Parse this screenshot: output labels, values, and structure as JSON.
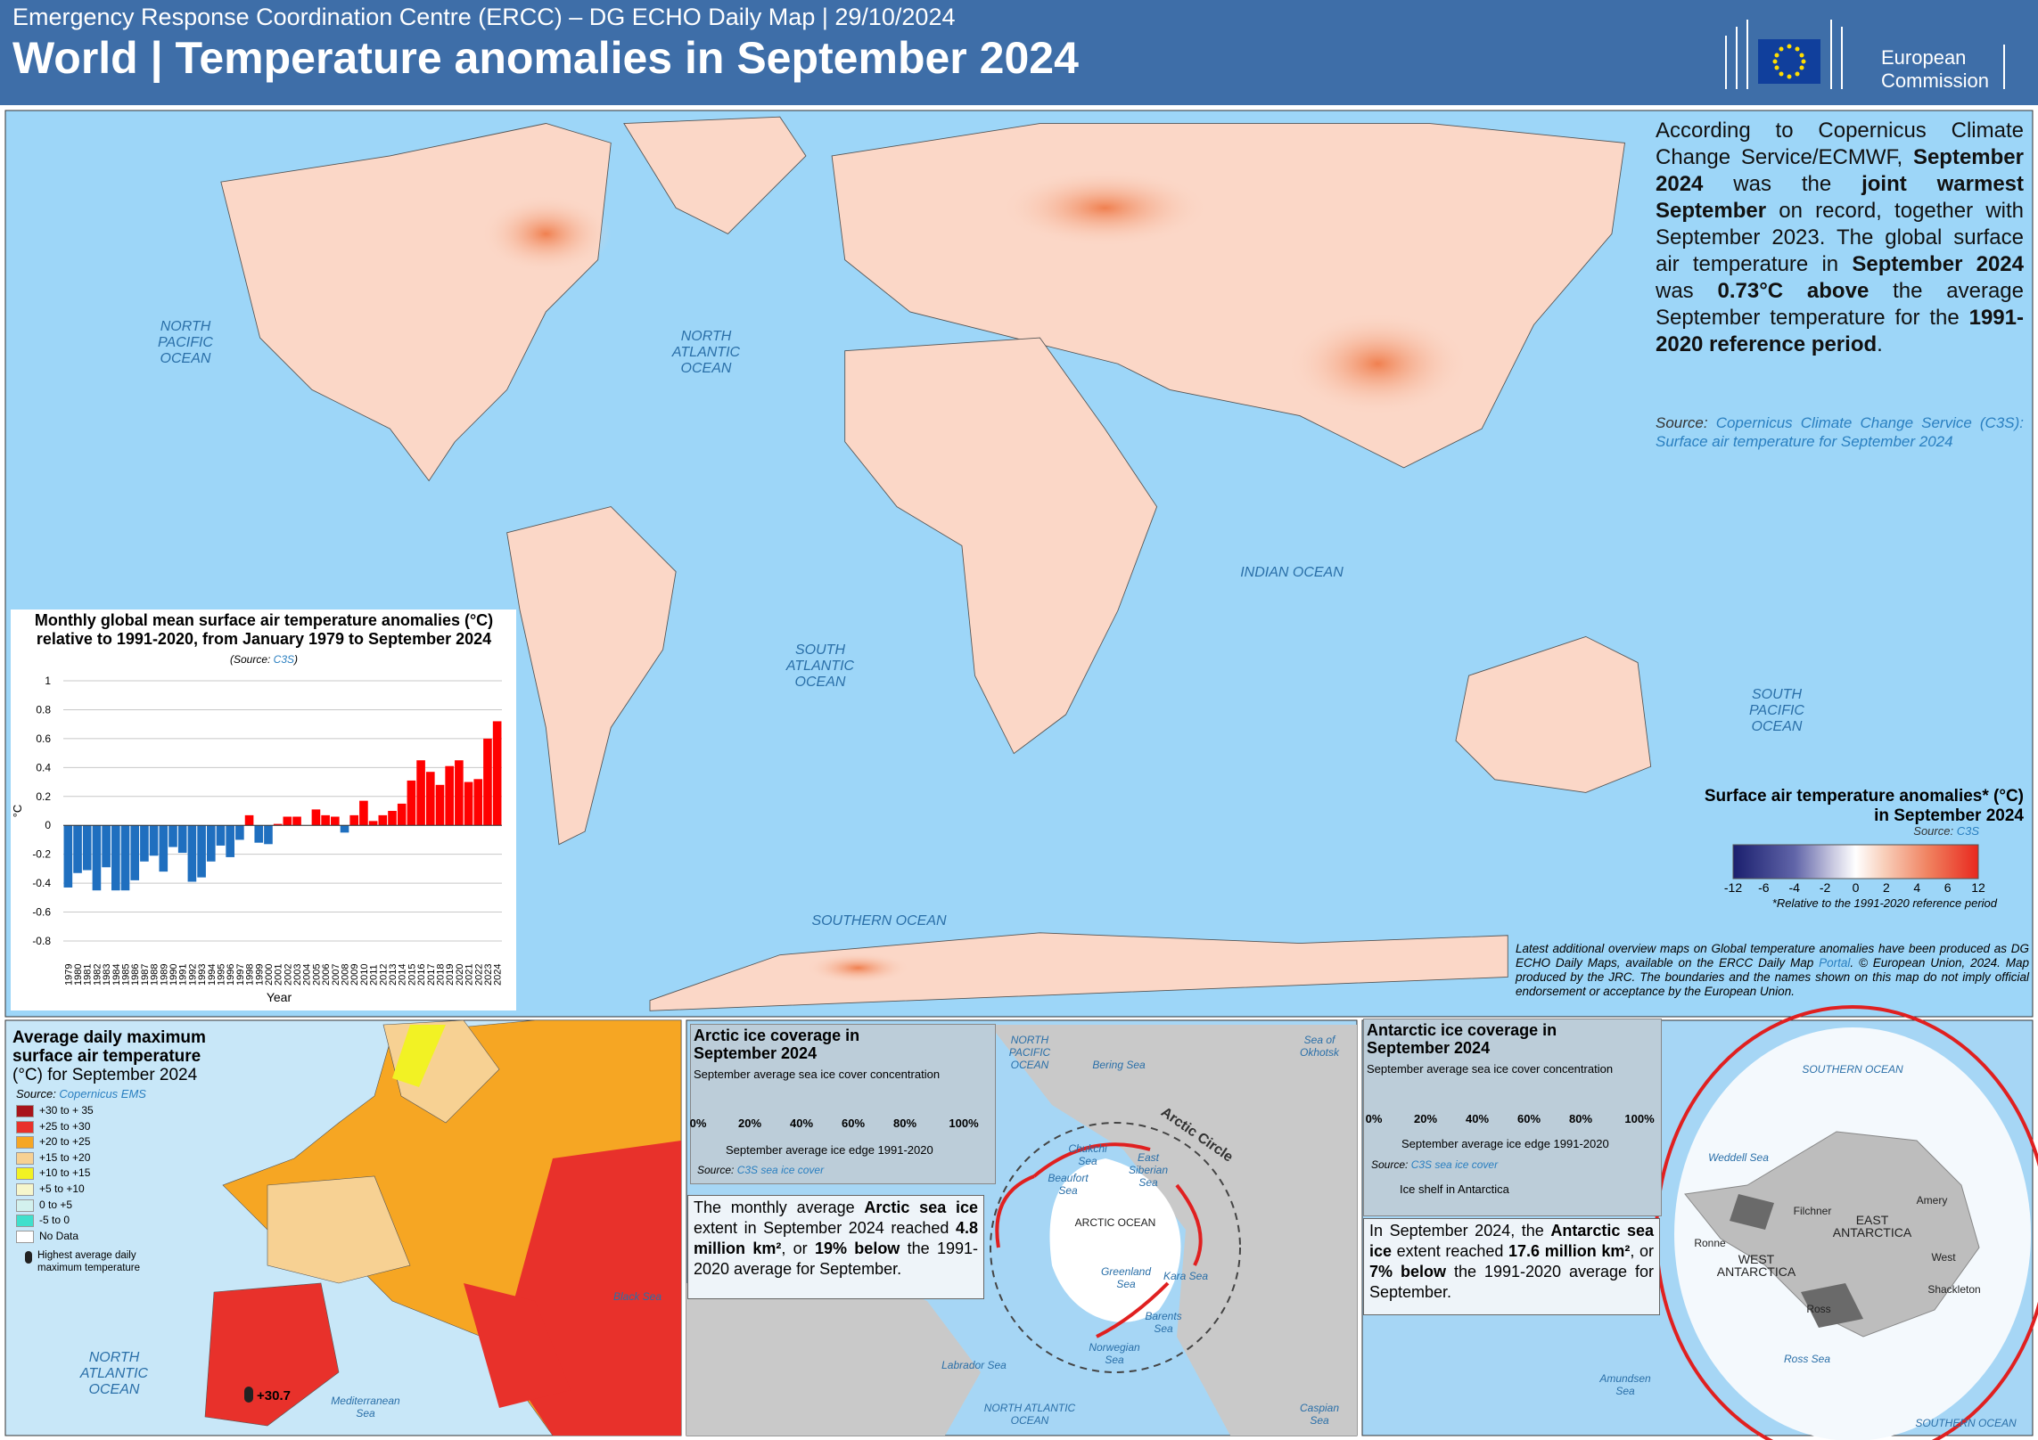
{
  "header": {
    "subtitle": "Emergency Response Coordination Centre (ERCC) – DG ECHO Daily Map | 29/10/2024",
    "title": "World | Temperature anomalies in September 2024",
    "logo": [
      "European",
      "Commission"
    ]
  },
  "map": {
    "ocean_labels": [
      "NORTH PACIFIC OCEAN",
      "NORTH ATLANTIC OCEAN",
      "INDIAN OCEAN",
      "SOUTH ATLANTIC OCEAN",
      "SOUTH PACIFIC OCEAN",
      "SOUTHERN OCEAN"
    ],
    "summary": [
      {
        "text": "According to Copernicus Climate Change Service/ECMWF, "
      },
      {
        "text": "September 2024",
        "bold": true
      },
      {
        "text": " was the "
      },
      {
        "text": "joint warmest September",
        "bold": true
      },
      {
        "text": " on record, together with September 2023. The global surface air temperature in "
      },
      {
        "text": "September 2024",
        "bold": true
      },
      {
        "text": " was "
      },
      {
        "text": "0.73°C above",
        "bold": true
      },
      {
        "text": " the average September temperature for the "
      },
      {
        "text": "1991-2020 reference period",
        "bold": true
      },
      {
        "text": "."
      }
    ],
    "source": [
      {
        "text": "Source: "
      },
      {
        "text": "Copernicus Climate Change Service (C3S): Surface air temperature for September 2024",
        "link": true
      }
    ],
    "legend": {
      "title": "Surface air temperature anomalies* (°C) in September 2024",
      "source": [
        {
          "text": "Source: "
        },
        {
          "text": "C3S",
          "link": true
        }
      ],
      "ticks": [
        -12,
        -6,
        -4,
        -2,
        0,
        2,
        4,
        6,
        12
      ],
      "note": "*Relative to the 1991-2020 reference period"
    },
    "footer_note": [
      {
        "text": "Latest additional overview maps on Global temperature anomalies have been produced as DG ECHO Daily Maps, available on the ERCC Daily Map "
      },
      {
        "text": "Portal",
        "link": true
      },
      {
        "text": ". © European Union, 2024. Map produced by the JRC. The boundaries and the names shown on this map do not imply official endorsement or acceptance by the European Union."
      }
    ]
  },
  "chart_data": {
    "type": "bar",
    "title": "Monthly global mean surface air temperature anomalies (°C) relative to 1991-2020, from January 1979 to September 2024",
    "source": [
      {
        "text": "(Source: "
      },
      {
        "text": "C3S",
        "link": true
      },
      {
        "text": ")"
      }
    ],
    "y_label": "°C",
    "x_label": "Year",
    "categories": [
      "1979",
      "1980",
      "1981",
      "1982",
      "1983",
      "1984",
      "1985",
      "1986",
      "1987",
      "1988",
      "1989",
      "1990",
      "1991",
      "1992",
      "1993",
      "1994",
      "1995",
      "1996",
      "1997",
      "1998",
      "1999",
      "2000",
      "2001",
      "2002",
      "2003",
      "2004",
      "2005",
      "2006",
      "2007",
      "2008",
      "2009",
      "2010",
      "2011",
      "2012",
      "2013",
      "2014",
      "2015",
      "2016",
      "2017",
      "2018",
      "2019",
      "2020",
      "2021",
      "2022",
      "2023",
      "2024"
    ],
    "values": [
      -0.43,
      -0.33,
      -0.31,
      -0.45,
      -0.29,
      -0.45,
      -0.45,
      -0.38,
      -0.25,
      -0.21,
      -0.32,
      -0.15,
      -0.19,
      -0.39,
      -0.36,
      -0.25,
      -0.14,
      -0.22,
      -0.1,
      0.07,
      -0.12,
      -0.13,
      0.01,
      0.06,
      0.06,
      0.0,
      0.11,
      0.07,
      0.06,
      -0.05,
      0.07,
      0.17,
      0.03,
      0.07,
      0.1,
      0.15,
      0.31,
      0.45,
      0.37,
      0.28,
      0.41,
      0.45,
      0.3,
      0.32,
      0.6,
      0.72
    ],
    "colors": {
      "positive": "#ff0000",
      "negative": "#1f6fbf"
    },
    "ylim": [
      -0.8,
      1
    ],
    "yticks": [
      -0.8,
      -0.6,
      -0.4,
      -0.2,
      0,
      0.2,
      0.4,
      0.6,
      0.8,
      1
    ],
    "grid": true
  },
  "europe": {
    "title": "Average daily maximum surface air temperature",
    "title_unit": "(°C) for September 2024",
    "source": [
      {
        "text": "Source: "
      },
      {
        "text": "Copernicus EMS",
        "link": true
      }
    ],
    "legend": [
      {
        "label": "+30 to + 35",
        "color": "#a8141b"
      },
      {
        "label": "+25 to +30",
        "color": "#e8312b"
      },
      {
        "label": "+20 to +25",
        "color": "#f6a623"
      },
      {
        "label": "+15 to +20",
        "color": "#f7d193"
      },
      {
        "label": "+10 to +15",
        "color": "#f2f224"
      },
      {
        "label": "+5 to +10",
        "color": "#f6f6cc"
      },
      {
        "label": "0 to +5",
        "color": "#d3f1ee"
      },
      {
        "label": "-5 to 0",
        "color": "#3fe0cc"
      },
      {
        "label": "No Data",
        "color": "#ffffff"
      }
    ],
    "max_label": "Highest average daily maximum temperature",
    "max_value": "+30.7",
    "labels": [
      "NORTH ATLANTIC OCEAN",
      "Mediterranean Sea",
      "Black Sea"
    ]
  },
  "arctic": {
    "title": "Arctic ice coverage in September 2024",
    "subtitle": "September average sea ice cover concentration",
    "scale": [
      "0%",
      "20%",
      "40%",
      "60%",
      "80%",
      "100%"
    ],
    "edge": "September average ice edge 1991-2020",
    "source": [
      {
        "text": "Source: "
      },
      {
        "text": "C3S sea ice cover",
        "link": true
      }
    ],
    "text": [
      {
        "text": "The monthly average "
      },
      {
        "text": "Arctic sea ice",
        "bold": true
      },
      {
        "text": " extent in September 2024 reached "
      },
      {
        "text": "4.8 million km²",
        "bold": true
      },
      {
        "text": ", or "
      },
      {
        "text": "19% below",
        "bold": true
      },
      {
        "text": " the 1991-2020 average for September."
      }
    ],
    "labels": [
      "NORTH PACIFIC OCEAN",
      "Bering Sea",
      "Sea of Okhotsk",
      "Arctic Circle",
      "Chukchi Sea",
      "Beaufort Sea",
      "East Siberian Sea",
      "ARCTIC OCEAN",
      "Greenland Sea",
      "Kara Sea",
      "Barents Sea",
      "Norwegian Sea",
      "Labrador Sea",
      "NORTH ATLANTIC OCEAN",
      "Caspian Sea"
    ]
  },
  "antarctic": {
    "title": "Antarctic ice coverage in September 2024",
    "subtitle": "September average sea ice cover concentration",
    "scale": [
      "0%",
      "20%",
      "40%",
      "60%",
      "80%",
      "100%"
    ],
    "edge": "September average ice edge 1991-2020",
    "source": [
      {
        "text": "Source: "
      },
      {
        "text": "C3S sea ice cover",
        "link": true
      }
    ],
    "shelf": "Ice shelf in Antarctica",
    "text": [
      {
        "text": "In September 2024, the "
      },
      {
        "text": "Antarctic sea ice",
        "bold": true
      },
      {
        "text": " extent reached "
      },
      {
        "text": "17.6 million km²",
        "bold": true
      },
      {
        "text": ", or "
      },
      {
        "text": "7% below",
        "bold": true
      },
      {
        "text": " the 1991-2020 average for September."
      }
    ],
    "labels": [
      "SOUTHERN OCEAN",
      "Weddell Sea",
      "Filchner",
      "Amery",
      "EAST ANTARCTICA",
      "Ronne",
      "WEST ANTARCTICA",
      "West",
      "Shackleton",
      "Ross",
      "Ross Sea",
      "Amundsen Sea",
      "SOUTHERN OCEAN"
    ]
  }
}
